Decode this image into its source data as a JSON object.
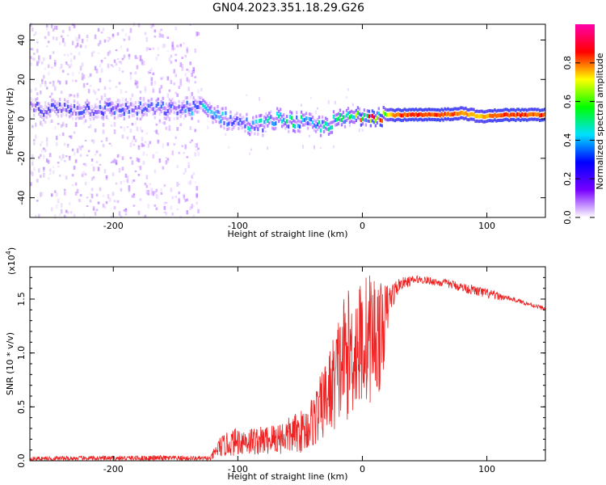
{
  "title": "GN04.2023.351.18.29.G26",
  "colors": {
    "snr_line": "#ee2222",
    "background_noise": "#7722dd"
  },
  "chart_data": [
    {
      "type": "heatmap",
      "name": "spectrogram",
      "xlabel": "Height of straight line (km)",
      "ylabel": "Frequency (Hz)",
      "xlim": [
        -267,
        147
      ],
      "ylim": [
        -50,
        48
      ],
      "x_ticks": [
        -200,
        -100,
        0,
        100
      ],
      "x_tick_labels": [
        "-200",
        "-100",
        "0",
        "100"
      ],
      "y_ticks": [
        -40,
        -20,
        0,
        20,
        40
      ],
      "y_tick_labels": [
        "-40",
        "-20",
        "0",
        "20",
        "40"
      ],
      "colorbar": {
        "label": "Normalized spectral amplitude",
        "range": [
          0,
          1
        ],
        "ticks": [
          0.0,
          0.2,
          0.4,
          0.6,
          0.8
        ],
        "tick_labels": [
          "0.0",
          "0.2",
          "0.4",
          "0.6",
          "0.8"
        ],
        "colormap": [
          "#ffffff",
          "#7700ff",
          "#0000ff",
          "#00e0ff",
          "#00ff00",
          "#ffff00",
          "#ff0000",
          "#ff00aa"
        ]
      },
      "noise_region_x": [
        -267,
        -132
      ],
      "ridge": [
        {
          "x": -267,
          "f": 5,
          "amp": 0.2
        },
        {
          "x": -200,
          "f": 5,
          "amp": 0.25
        },
        {
          "x": -150,
          "f": 5,
          "amp": 0.25
        },
        {
          "x": -130,
          "f": 6,
          "amp": 0.35
        },
        {
          "x": -110,
          "f": 0,
          "amp": 0.3
        },
        {
          "x": -85,
          "f": -4,
          "amp": 0.35
        },
        {
          "x": -70,
          "f": 0,
          "amp": 0.35
        },
        {
          "x": -50,
          "f": -2,
          "amp": 0.4
        },
        {
          "x": -35,
          "f": -4,
          "amp": 0.35
        },
        {
          "x": -15,
          "f": 0,
          "amp": 0.5
        },
        {
          "x": 0,
          "f": 2,
          "amp": 0.6
        },
        {
          "x": 30,
          "f": 2,
          "amp": 0.85
        },
        {
          "x": 60,
          "f": 2,
          "amp": 0.85
        },
        {
          "x": 80,
          "f": 3,
          "amp": 0.8
        },
        {
          "x": 95,
          "f": 1,
          "amp": 0.75
        },
        {
          "x": 110,
          "f": 2,
          "amp": 0.85
        },
        {
          "x": 147,
          "f": 2,
          "amp": 0.85
        }
      ]
    },
    {
      "type": "line",
      "name": "snr",
      "xlabel": "Height of straight line (km)",
      "ylabel": "SNR (10 * v/v)",
      "yscale_label": "(x10",
      "yscale_exponent": "4",
      "xlim": [
        -267,
        147
      ],
      "ylim": [
        0,
        18000
      ],
      "x_ticks": [
        -200,
        -100,
        0,
        100
      ],
      "x_tick_labels": [
        "-200",
        "-100",
        "0",
        "100"
      ],
      "y_ticks": [
        0,
        5000,
        10000,
        15000
      ],
      "y_tick_labels": [
        "0.0",
        "0.5",
        "1.0",
        "1.5"
      ],
      "envelope": [
        {
          "x": -267,
          "low": 0,
          "high": 400
        },
        {
          "x": -160,
          "low": 0,
          "high": 500
        },
        {
          "x": -122,
          "low": 0,
          "high": 400
        },
        {
          "x": -115,
          "low": 300,
          "high": 2200
        },
        {
          "x": -100,
          "low": 500,
          "high": 3200
        },
        {
          "x": -80,
          "low": 500,
          "high": 3200
        },
        {
          "x": -60,
          "low": 600,
          "high": 4000
        },
        {
          "x": -45,
          "low": 800,
          "high": 5000
        },
        {
          "x": -35,
          "low": 1500,
          "high": 7500
        },
        {
          "x": -25,
          "low": 2500,
          "high": 11000
        },
        {
          "x": -15,
          "low": 3500,
          "high": 15500
        },
        {
          "x": -5,
          "low": 4500,
          "high": 16500
        },
        {
          "x": 8,
          "low": 5500,
          "high": 18000
        },
        {
          "x": 15,
          "low": 6500,
          "high": 16500
        },
        {
          "x": 22,
          "low": 13500,
          "high": 16500
        },
        {
          "x": 30,
          "low": 15800,
          "high": 17000
        },
        {
          "x": 45,
          "low": 16500,
          "high": 17200
        },
        {
          "x": 70,
          "low": 16000,
          "high": 16800
        },
        {
          "x": 100,
          "low": 15000,
          "high": 16000
        },
        {
          "x": 120,
          "low": 14800,
          "high": 15200
        },
        {
          "x": 147,
          "low": 13900,
          "high": 14300
        }
      ]
    }
  ]
}
